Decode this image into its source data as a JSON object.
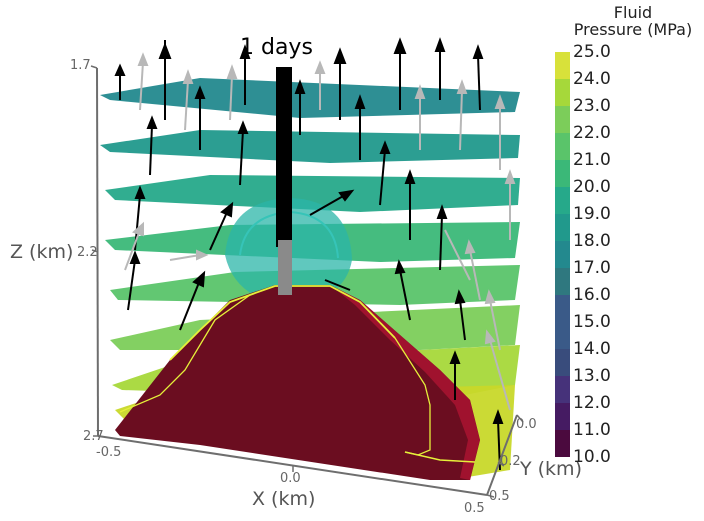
{
  "time_label": "1 days",
  "colorbar": {
    "title_line1": "Fluid",
    "title_line2": "Pressure (MPa)",
    "ticks": [
      "25.0",
      "24.0",
      "23.0",
      "22.0",
      "21.0",
      "20.0",
      "19.0",
      "18.0",
      "17.0",
      "16.0",
      "15.0",
      "14.0",
      "13.0",
      "12.0",
      "11.0",
      "10.0"
    ],
    "band_colors_top_to_bottom": [
      "#d8e13a",
      "#a6d83a",
      "#7ccd5a",
      "#5ac46a",
      "#3bb878",
      "#26a98a",
      "#21998c",
      "#23898e",
      "#2f787f",
      "#3a5a88",
      "#3a5a88",
      "#394c7c",
      "#46327a",
      "#451b62",
      "#4b0a3e"
    ]
  },
  "axes": {
    "z_title": "Z (km)",
    "z_ticks": [
      "1.7",
      "2.2",
      "2.7"
    ],
    "x_title": "X (km)",
    "x_ticks": [
      "-0.5",
      "0.0",
      "0.5"
    ],
    "y_title": "Y (km)",
    "y_ticks": [
      "0.0",
      "0.2",
      "0.5"
    ]
  },
  "scene_colors": {
    "high_pressure_body": "#6b0d20",
    "high_pressure_edge": "#a0122e",
    "contour_line": "#e6f03a",
    "wellbore": "#000000",
    "arrow_dark": "#000000",
    "arrow_light": "#b8b8b8",
    "axis_line": "#6e6e6e"
  },
  "chart_data": {
    "type": "3d-isosurface-glyph",
    "title": "1 days",
    "scalar_field": "Fluid Pressure (MPa)",
    "color_range": [
      10.0,
      25.0
    ],
    "colormap_levels": [
      10,
      11,
      12,
      13,
      14,
      15,
      16,
      17,
      18,
      19,
      20,
      21,
      22,
      23,
      24,
      25
    ],
    "xlabel": "X (km)",
    "xlim": [
      -0.5,
      0.5
    ],
    "xticks": [
      -0.5,
      0.0,
      0.5
    ],
    "ylabel": "Y (km)",
    "ylim": [
      0.0,
      0.5
    ],
    "yticks": [
      0.0,
      0.2,
      0.5
    ],
    "zlabel": "Z (km)",
    "zlim": [
      1.7,
      2.7
    ],
    "zticks": [
      1.7,
      2.2,
      2.7
    ],
    "slices": [
      {
        "level": 1,
        "approx_pressure_MPa": 17.5,
        "color": "#23898e"
      },
      {
        "level": 2,
        "approx_pressure_MPa": 18.0,
        "color": "#21998c"
      },
      {
        "level": 3,
        "approx_pressure_MPa": 19.0,
        "color": "#26a98a"
      },
      {
        "level": 4,
        "approx_pressure_MPa": 20.0,
        "color": "#3bb878"
      },
      {
        "level": 5,
        "approx_pressure_MPa": 21.0,
        "color": "#5ac46a"
      },
      {
        "level": 6,
        "approx_pressure_MPa": 22.0,
        "color": "#7ccd5a"
      },
      {
        "level": 7,
        "approx_pressure_MPa": 23.5,
        "color": "#a6d83a"
      },
      {
        "level": 8,
        "approx_pressure_MPa": 24.5,
        "color": "#c8d82a"
      }
    ],
    "legend_position": "right"
  }
}
